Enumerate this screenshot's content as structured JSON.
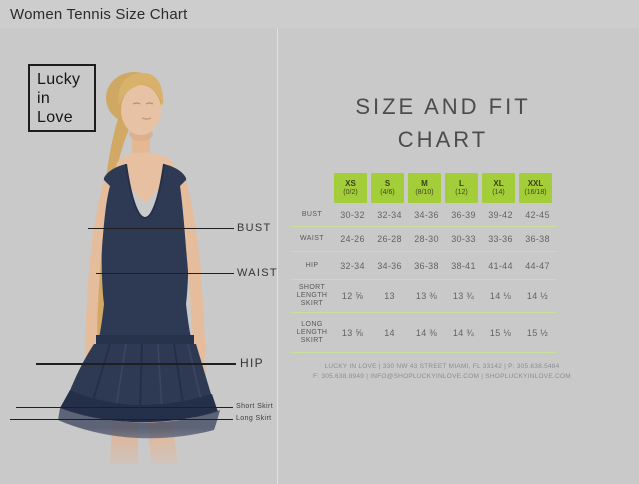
{
  "page": {
    "title": "Women Tennis Size Chart"
  },
  "brand": {
    "logo_lines": [
      "Lucky",
      "in",
      "Love"
    ]
  },
  "model_callouts": {
    "bust": "BUST",
    "waist": "WAIST",
    "hip": "HIP",
    "short_skirt": "Short Skirt",
    "long_skirt": "Long Skirt"
  },
  "chart": {
    "title_line1": "SIZE AND FIT",
    "title_line2": "CHART",
    "footer_line1": "LUCKY IN LOVE | 330 NW 43 STREET MIAMI, FL 33142 | P: 305.638.5484",
    "footer_line2": "F: 305.638.8949 | INFO@SHOPLUCKYINLOVE.COM | SHOPLUCKYINLOVE.COM"
  },
  "chart_data": {
    "type": "table",
    "title": "SIZE AND FIT CHART",
    "columns": [
      {
        "size": "XS",
        "range": "(0/2)"
      },
      {
        "size": "S",
        "range": "(4/6)"
      },
      {
        "size": "M",
        "range": "(8/10)"
      },
      {
        "size": "L",
        "range": "(12)"
      },
      {
        "size": "XL",
        "range": "(14)"
      },
      {
        "size": "XXL",
        "range": "(16/18)"
      }
    ],
    "rows": [
      {
        "label": "BUST",
        "values": [
          "30-32",
          "32-34",
          "34-36",
          "36-39",
          "39-42",
          "42-45"
        ]
      },
      {
        "label": "WAIST",
        "values": [
          "24-26",
          "26-28",
          "28-30",
          "30-33",
          "33-36",
          "36-38"
        ]
      },
      {
        "label": "HIP",
        "values": [
          "32-34",
          "34-36",
          "36-38",
          "38-41",
          "41-44",
          "44-47"
        ]
      },
      {
        "label": "SHORT LENGTH SKIRT",
        "values": [
          "12 ⅝",
          "13",
          "13 ⅜",
          "13 ¾",
          "14 ⅛",
          "14 ½"
        ]
      },
      {
        "label": "LONG LENGTH SKIRT",
        "values": [
          "13 ⅝",
          "14",
          "14 ⅜",
          "14 ¾",
          "15 ⅛",
          "15 ½"
        ]
      }
    ]
  },
  "colors": {
    "accent_green": "#a3cd39",
    "separator_green": "#cadf9c",
    "navy": "#2e3a54",
    "background_gray": "#c9c9c9"
  }
}
